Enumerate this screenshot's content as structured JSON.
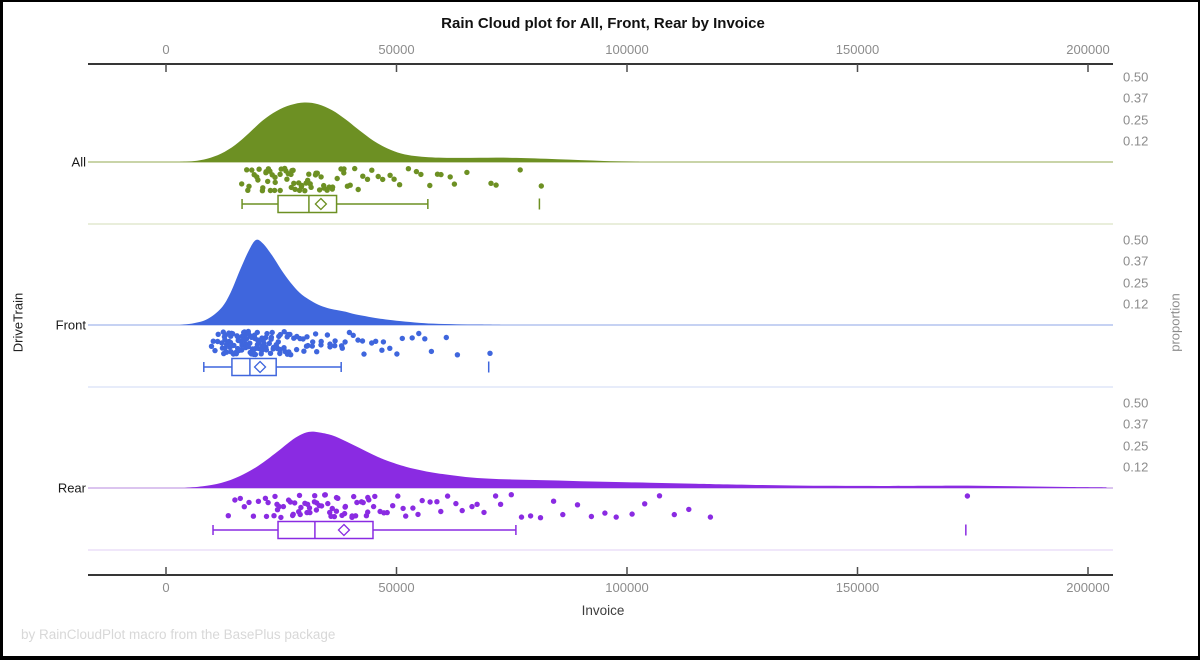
{
  "title": "Rain Cloud plot for All, Front, Rear by Invoice",
  "footer_note": "by RainCloudPlot macro from the BasePlus package",
  "x_axis": {
    "label": "Invoice",
    "ticks": [
      {
        "value": 0,
        "label": "0"
      },
      {
        "value": 50000,
        "label": "50000"
      },
      {
        "value": 100000,
        "label": "100000"
      },
      {
        "value": 150000,
        "label": "150000"
      },
      {
        "value": 200000,
        "label": "200000"
      }
    ]
  },
  "y_axis": {
    "label": "DriveTrain"
  },
  "right_axis": {
    "label": "proportion",
    "ticks": [
      {
        "value": 0.5,
        "label": "0.50"
      },
      {
        "value": 0.375,
        "label": "0.37"
      },
      {
        "value": 0.25,
        "label": "0.25"
      },
      {
        "value": 0.125,
        "label": "0.12"
      }
    ]
  },
  "chart_data": {
    "type": "raincloud",
    "x_range": [
      0,
      205000
    ],
    "proportion_max": 0.5,
    "groups": [
      {
        "name": "All",
        "color": "#6d9023",
        "baseline_color": "#b7c68b",
        "band_line_color": "#e2e8cf",
        "density": [
          [
            3000,
            0
          ],
          [
            6000,
            0.005
          ],
          [
            9000,
            0.02
          ],
          [
            12000,
            0.05
          ],
          [
            15000,
            0.1
          ],
          [
            18000,
            0.17
          ],
          [
            21000,
            0.245
          ],
          [
            24000,
            0.3
          ],
          [
            27000,
            0.335
          ],
          [
            30000,
            0.35
          ],
          [
            33000,
            0.34
          ],
          [
            36000,
            0.305
          ],
          [
            39000,
            0.25
          ],
          [
            42000,
            0.185
          ],
          [
            45000,
            0.125
          ],
          [
            48000,
            0.08
          ],
          [
            51000,
            0.05
          ],
          [
            54000,
            0.035
          ],
          [
            57000,
            0.028
          ],
          [
            60000,
            0.025
          ],
          [
            64000,
            0.024
          ],
          [
            68000,
            0.025
          ],
          [
            72000,
            0.026
          ],
          [
            76000,
            0.024
          ],
          [
            80000,
            0.021
          ],
          [
            85000,
            0.016
          ],
          [
            90000,
            0.011
          ],
          [
            95000,
            0.006
          ],
          [
            100000,
            0.002
          ],
          [
            104000,
            0
          ]
        ],
        "box": {
          "whisker_low": 16500,
          "q1": 24300,
          "median": 31000,
          "q3": 37000,
          "whisker_high": 56800,
          "mean": 33600,
          "outliers": [
            81000
          ]
        },
        "points": [
          16800,
          17400,
          17900,
          18300,
          18700,
          19100,
          19500,
          19900,
          20200,
          20600,
          20900,
          21300,
          21600,
          22000,
          22300,
          22700,
          23000,
          23400,
          23700,
          24100,
          24400,
          24800,
          25100,
          25500,
          25800,
          26200,
          26500,
          26900,
          27200,
          27600,
          27900,
          28300,
          28600,
          29000,
          29300,
          29700,
          30000,
          30400,
          30800,
          31200,
          31600,
          32000,
          32400,
          32800,
          33200,
          33600,
          34000,
          34500,
          35000,
          35500,
          36000,
          36500,
          37000,
          37600,
          38200,
          38800,
          39500,
          40200,
          41000,
          41800,
          42700,
          43600,
          44600,
          45700,
          46900,
          48200,
          49600,
          51000,
          52500,
          54000,
          55500,
          57000,
          58500,
          60000,
          61500,
          63000,
          65500,
          70500,
          71500,
          77000,
          81000,
          22500,
          27400,
          31900
        ]
      },
      {
        "name": "Front",
        "color": "#3f66dd",
        "baseline_color": "#b3c3ef",
        "band_line_color": "#dfe6f8",
        "density": [
          [
            3000,
            0
          ],
          [
            6000,
            0.01
          ],
          [
            9000,
            0.035
          ],
          [
            12000,
            0.1
          ],
          [
            14000,
            0.19
          ],
          [
            16000,
            0.32
          ],
          [
            18000,
            0.44
          ],
          [
            19500,
            0.5
          ],
          [
            21000,
            0.48
          ],
          [
            23000,
            0.41
          ],
          [
            25000,
            0.325
          ],
          [
            27000,
            0.25
          ],
          [
            29000,
            0.19
          ],
          [
            31000,
            0.15
          ],
          [
            33000,
            0.12
          ],
          [
            35000,
            0.1
          ],
          [
            37000,
            0.088
          ],
          [
            39000,
            0.078
          ],
          [
            41000,
            0.063
          ],
          [
            44000,
            0.048
          ],
          [
            47000,
            0.035
          ],
          [
            50000,
            0.025
          ],
          [
            54000,
            0.015
          ],
          [
            58000,
            0.008
          ],
          [
            63000,
            0.004
          ],
          [
            68000,
            0.002
          ],
          [
            73000,
            0
          ]
        ],
        "box": {
          "whisker_low": 8200,
          "q1": 14300,
          "median": 18200,
          "q3": 23900,
          "whisker_high": 38000,
          "mean": 20400,
          "outliers": [
            70000
          ]
        },
        "points": [
          10200,
          10600,
          11000,
          11300,
          11600,
          11900,
          12200,
          12400,
          12700,
          12900,
          13100,
          13300,
          13500,
          13700,
          13900,
          14100,
          14300,
          14500,
          14700,
          14900,
          15100,
          15300,
          15500,
          15700,
          15900,
          16100,
          16300,
          16500,
          16700,
          16900,
          17100,
          17300,
          17500,
          17700,
          17900,
          18100,
          18300,
          18500,
          18700,
          18900,
          19100,
          19300,
          19500,
          19700,
          19900,
          20100,
          20300,
          20500,
          20700,
          20900,
          21100,
          21300,
          21600,
          21900,
          22200,
          22500,
          22800,
          23100,
          23400,
          23700,
          24000,
          24300,
          24600,
          24900,
          25200,
          25500,
          25800,
          26100,
          26400,
          26700,
          27000,
          27400,
          27800,
          28200,
          28600,
          29000,
          29400,
          29800,
          30200,
          30600,
          31000,
          31500,
          32000,
          32500,
          33000,
          33500,
          34000,
          34600,
          35200,
          35800,
          36400,
          37000,
          37700,
          38400,
          39100,
          39900,
          40700,
          41500,
          42400,
          43300,
          44300,
          45300,
          46400,
          47500,
          48700,
          50000,
          51500,
          53000,
          54500,
          56000,
          58000,
          60500,
          63500,
          70000,
          12500,
          13000,
          13600,
          14200,
          14800,
          15400,
          16000,
          16600,
          17200,
          17800,
          18400,
          19000,
          19600,
          20200,
          20800,
          21400,
          22000,
          22600,
          23200,
          23800,
          24400,
          25000,
          25600,
          26200,
          26800,
          13200,
          14400,
          15600,
          16800,
          18000,
          19200,
          20400,
          21600,
          22800,
          24000
        ]
      },
      {
        "name": "Rear",
        "color": "#8a2be2",
        "baseline_color": "#cfb0ea",
        "band_line_color": "#ecdff8",
        "density": [
          [
            4000,
            0
          ],
          [
            8000,
            0.01
          ],
          [
            12000,
            0.03
          ],
          [
            16000,
            0.07
          ],
          [
            20000,
            0.13
          ],
          [
            24000,
            0.21
          ],
          [
            27000,
            0.275
          ],
          [
            29000,
            0.31
          ],
          [
            31000,
            0.33
          ],
          [
            33000,
            0.328
          ],
          [
            36000,
            0.31
          ],
          [
            39000,
            0.275
          ],
          [
            42000,
            0.235
          ],
          [
            45000,
            0.195
          ],
          [
            48000,
            0.16
          ],
          [
            52000,
            0.125
          ],
          [
            56000,
            0.1
          ],
          [
            60000,
            0.082
          ],
          [
            65000,
            0.065
          ],
          [
            70000,
            0.055
          ],
          [
            75000,
            0.05
          ],
          [
            80000,
            0.047
          ],
          [
            85000,
            0.044
          ],
          [
            90000,
            0.04
          ],
          [
            95000,
            0.037
          ],
          [
            100000,
            0.034
          ],
          [
            105000,
            0.031
          ],
          [
            110000,
            0.028
          ],
          [
            115000,
            0.025
          ],
          [
            120000,
            0.022
          ],
          [
            128000,
            0.018
          ],
          [
            136000,
            0.015
          ],
          [
            145000,
            0.013
          ],
          [
            155000,
            0.012
          ],
          [
            165000,
            0.013
          ],
          [
            172000,
            0.014
          ],
          [
            180000,
            0.012
          ],
          [
            188000,
            0.009
          ],
          [
            196000,
            0.006
          ],
          [
            204000,
            0.004
          ]
        ],
        "box": {
          "whisker_low": 10200,
          "q1": 24300,
          "median": 32300,
          "q3": 44900,
          "whisker_high": 75900,
          "mean": 38600,
          "outliers": [
            173500
          ]
        },
        "points": [
          13800,
          15000,
          16200,
          17300,
          18400,
          19400,
          20400,
          21300,
          22200,
          23100,
          24000,
          24800,
          25600,
          26400,
          27200,
          28000,
          28700,
          29400,
          30100,
          30800,
          31500,
          32200,
          32900,
          33600,
          34300,
          35000,
          35700,
          36400,
          37100,
          37800,
          38500,
          39300,
          40100,
          40900,
          41700,
          42500,
          43400,
          44300,
          45200,
          46100,
          47100,
          48100,
          49100,
          50200,
          51300,
          52400,
          53600,
          54800,
          56000,
          57300,
          58600,
          60000,
          61400,
          62900,
          64400,
          66000,
          67700,
          69400,
          71200,
          73000,
          75000,
          77000,
          79000,
          81500,
          84000,
          86500,
          89000,
          92000,
          95000,
          98000,
          101000,
          104000,
          107000,
          110000,
          113000,
          118500,
          173500,
          21800,
          23500,
          25200,
          26900,
          28600,
          30300,
          32000,
          33700,
          35400,
          37100,
          38800,
          40500,
          42200,
          43900,
          45600,
          24400,
          27600,
          30800,
          34000,
          37200,
          40400,
          43600,
          29000,
          32500,
          36000
        ]
      }
    ]
  }
}
